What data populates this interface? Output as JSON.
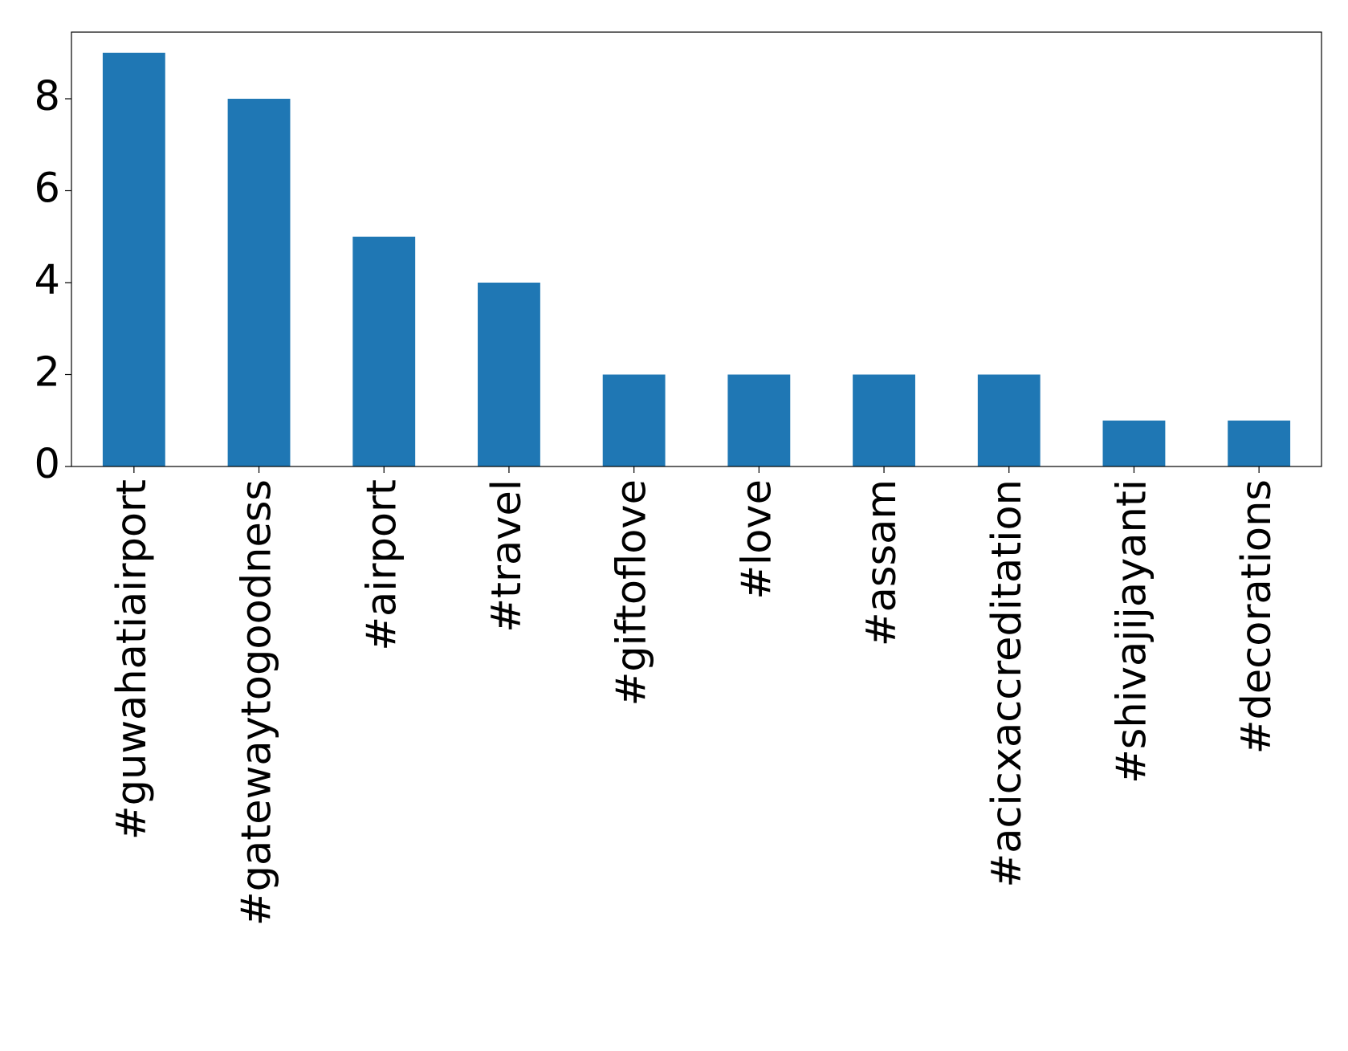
{
  "chart_data": {
    "type": "bar",
    "categories": [
      "#guwahatiairport",
      "#gatewaytogoodness",
      "#airport",
      "#travel",
      "#giftoflove",
      "#love",
      "#assam",
      "#acicxaccreditation",
      "#shivajijayanti",
      "#decorations"
    ],
    "values": [
      9,
      8,
      5,
      4,
      2,
      2,
      2,
      2,
      1,
      1
    ],
    "color": "#1f77b4",
    "ylim": [
      0,
      9.45
    ],
    "yticks": [
      0,
      2,
      4,
      6,
      8
    ],
    "grid": false
  }
}
